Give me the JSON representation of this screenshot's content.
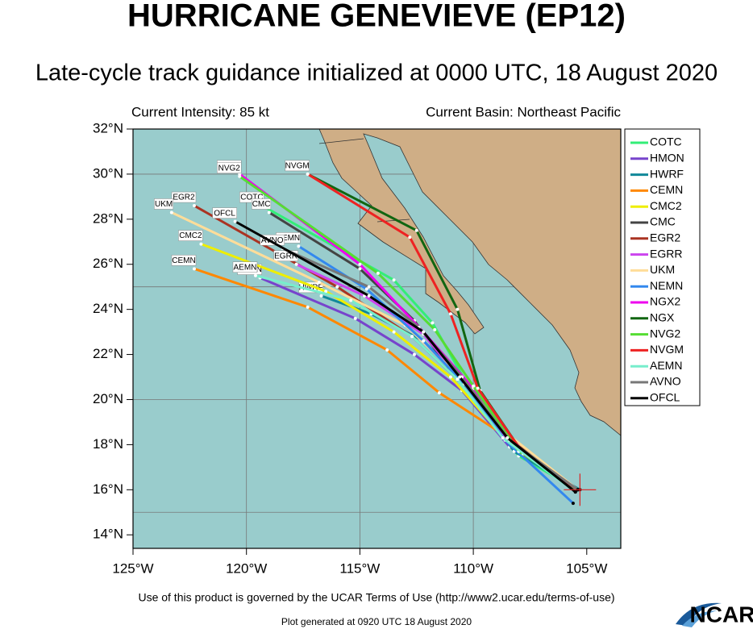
{
  "chart_data": {
    "type": "track",
    "title": "HURRICANE GENEVIEVE (EP12)",
    "subtitle": "Late-cycle track guidance initialized at 0000 UTC, 18 August 2020",
    "left_note": "Current Intensity: 85 kt",
    "right_note": "Current Basin: Northeast Pacific",
    "footer": "Use of this product is governed by the UCAR Terms of Use (http://www2.ucar.edu/terms-of-use)",
    "generated": "Plot generated at 0920 UTC   18 August 2020",
    "logo": "NCAR",
    "xlim": [
      -125,
      -103.5
    ],
    "ylim": [
      13.4,
      32
    ],
    "xticks": [
      {
        "value": -125,
        "label": "125°W"
      },
      {
        "value": -120,
        "label": "120°W"
      },
      {
        "value": -115,
        "label": "115°W"
      },
      {
        "value": -110,
        "label": "110°W"
      },
      {
        "value": -105,
        "label": "105°W"
      }
    ],
    "yticks": [
      {
        "value": 14,
        "label": "14°N"
      },
      {
        "value": 16,
        "label": "16°N"
      },
      {
        "value": 18,
        "label": "18°N"
      },
      {
        "value": 20,
        "label": "20°N"
      },
      {
        "value": 22,
        "label": "22°N"
      },
      {
        "value": 24,
        "label": "24°N"
      },
      {
        "value": 26,
        "label": "26°N"
      },
      {
        "value": 28,
        "label": "28°N"
      },
      {
        "value": 30,
        "label": "30°N"
      },
      {
        "value": 32,
        "label": "32°N"
      }
    ],
    "xgrid": [
      -120,
      -115,
      -110
    ],
    "ygrid": [
      15,
      20,
      25,
      30
    ],
    "current_position": {
      "x": -105.3,
      "y": 16.0
    },
    "series": [
      {
        "name": "COTC",
        "color": "#33ee77",
        "x": [
          -105.4,
          -108.0,
          -110.0,
          -111.8,
          -113.5,
          -119.3
        ],
        "values": [
          16.0,
          17.5,
          20.2,
          23.4,
          25.3,
          28.6
        ]
      },
      {
        "name": "HMON",
        "color": "#7744cc",
        "x": [
          -105.4,
          -108.4,
          -110.5,
          -112.6,
          -115.2,
          -119.4
        ],
        "values": [
          16.0,
          17.9,
          20.4,
          22.0,
          23.6,
          25.4
        ]
      },
      {
        "name": "HWRF",
        "color": "#118899",
        "x": [
          -105.3,
          -108.2,
          -110.3,
          -112.2,
          -114.5,
          -116.7
        ],
        "values": [
          16.0,
          17.7,
          20.7,
          22.6,
          23.8,
          24.6
        ]
      },
      {
        "name": "CEMN",
        "color": "#ff8800",
        "x": [
          -105.4,
          -108.6,
          -111.5,
          -113.8,
          -117.3,
          -122.3
        ],
        "values": [
          16.0,
          18.4,
          20.3,
          22.2,
          24.1,
          25.8
        ]
      },
      {
        "name": "CMC2",
        "color": "#eeee00",
        "x": [
          -105.4,
          -108.8,
          -111.0,
          -113.5,
          -116.5,
          -122.0
        ],
        "values": [
          16.0,
          18.5,
          21.0,
          23.0,
          24.8,
          26.9
        ]
      },
      {
        "name": "CMC",
        "color": "#444444",
        "x": [
          -105.4,
          -108.2,
          -110.8,
          -112.6,
          -115.0,
          -119.0
        ],
        "values": [
          16.0,
          18.0,
          21.0,
          23.5,
          25.8,
          28.3
        ]
      },
      {
        "name": "EGR2",
        "color": "#aa3322",
        "x": [
          -105.4,
          -108.5,
          -110.6,
          -112.7,
          -116.0,
          -122.3
        ],
        "values": [
          16.0,
          18.3,
          20.8,
          22.8,
          25.0,
          28.6
        ]
      },
      {
        "name": "EGRR",
        "color": "#cc44ee",
        "x": [
          -105.4,
          -108.3,
          -110.4,
          -112.2,
          -114.8,
          -117.8
        ],
        "values": [
          16.0,
          18.0,
          20.7,
          22.9,
          24.6,
          26.0
        ]
      },
      {
        "name": "UKM",
        "color": "#ffdd99",
        "x": [
          -105.4,
          -108.4,
          -110.8,
          -113.0,
          -116.8,
          -123.3
        ],
        "values": [
          16.0,
          18.4,
          21.2,
          23.3,
          25.2,
          28.3
        ]
      },
      {
        "name": "NEMN",
        "color": "#3388ee",
        "x": [
          -105.6,
          -108.6,
          -110.4,
          -112.2,
          -114.7,
          -117.7
        ],
        "values": [
          15.4,
          18.2,
          20.7,
          22.6,
          24.9,
          26.8
        ]
      },
      {
        "name": "NGX2",
        "color": "#ee00ee",
        "x": [
          -105.4,
          -107.9,
          -110.0,
          -112.2,
          -115.0,
          -120.3
        ],
        "values": [
          16.0,
          17.8,
          20.5,
          23.0,
          26.0,
          30.0
        ]
      },
      {
        "name": "NGX",
        "color": "#116611",
        "x": [
          -105.4,
          -107.8,
          -109.7,
          -110.7,
          -112.5,
          -117.3
        ],
        "values": [
          16.0,
          17.6,
          20.4,
          24.0,
          27.5,
          30.0
        ]
      },
      {
        "name": "NVG2",
        "color": "#55dd33",
        "x": [
          -105.4,
          -108.0,
          -110.0,
          -111.7,
          -114.2,
          -120.3
        ],
        "values": [
          16.0,
          17.7,
          20.6,
          23.1,
          25.6,
          29.9
        ]
      },
      {
        "name": "NVGM",
        "color": "#ee2222",
        "x": [
          -105.4,
          -107.8,
          -109.8,
          -111.0,
          -112.8,
          -117.3
        ],
        "values": [
          16.0,
          17.6,
          20.5,
          23.8,
          27.2,
          30.0
        ]
      },
      {
        "name": "AEMN",
        "color": "#77eecc",
        "x": [
          -105.5,
          -108.7,
          -110.7,
          -112.7,
          -115.4,
          -119.6
        ],
        "values": [
          15.9,
          18.3,
          20.9,
          22.8,
          24.4,
          25.5
        ]
      },
      {
        "name": "AVNO",
        "color": "#777777",
        "x": [
          -105.4,
          -108.4,
          -110.5,
          -112.4,
          -114.6,
          -118.4
        ],
        "values": [
          16.0,
          18.2,
          21.0,
          23.2,
          25.0,
          26.7
        ]
      },
      {
        "name": "OFCL",
        "color": "#000000",
        "x": [
          -105.5,
          -108.5,
          -110.6,
          -112.2,
          -114.6,
          -120.5
        ],
        "values": [
          15.9,
          18.3,
          21.0,
          23.0,
          24.6,
          27.9
        ]
      }
    ]
  }
}
